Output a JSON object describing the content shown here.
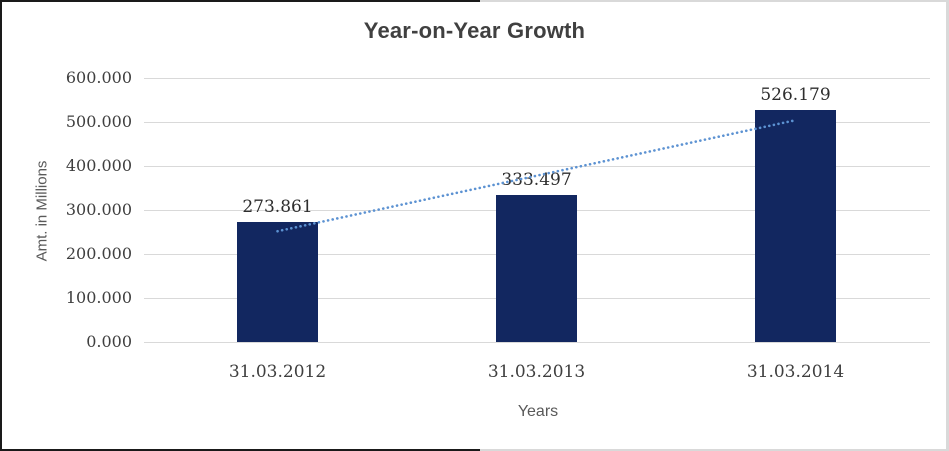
{
  "chart_data": {
    "type": "bar",
    "title": "Year-on-Year Growth",
    "xlabel": "Years",
    "ylabel": "Amt. in Millions",
    "categories": [
      "31.03.2012",
      "31.03.2013",
      "31.03.2014"
    ],
    "values": [
      273.861,
      333.497,
      526.179
    ],
    "data_labels": [
      "273.861",
      "333.497",
      "526.179"
    ],
    "ylim": [
      0,
      600
    ],
    "ytick_step": 100,
    "ytick_labels": [
      "0.000",
      "100.000",
      "200.000",
      "300.000",
      "400.000",
      "500.000",
      "600.000"
    ],
    "grid": true,
    "legend": "none",
    "trendline": {
      "type": "linear",
      "style": "dotted",
      "color": "#5c92d2"
    },
    "colors": {
      "bar": "#122760",
      "grid": "#d9d9d9",
      "tick_text": "#3f3f3f",
      "axis_title_text": "#595959",
      "title_text": "#404040",
      "border_black": "#1a1a1a",
      "border_gray": "#d9d9d9",
      "background": "#ffffff"
    }
  }
}
